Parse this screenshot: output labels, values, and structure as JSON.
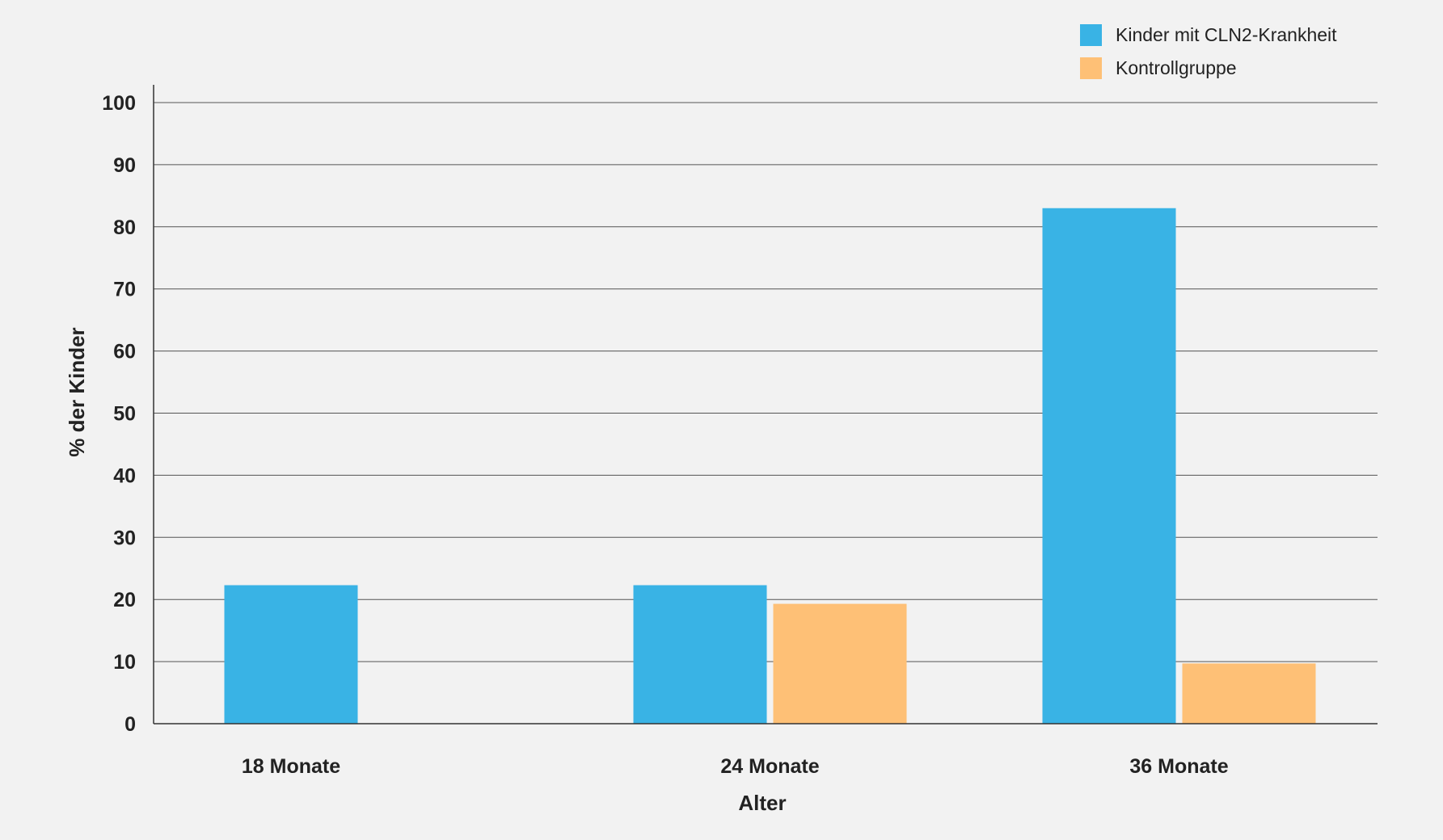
{
  "chart_data": {
    "type": "bar",
    "categories": [
      "18 Monate",
      "24 Monate",
      "36 Monate"
    ],
    "series": [
      {
        "name": "Kinder mit CLN2-Krankheit",
        "color": "#39b3e5",
        "values": [
          22.3,
          22.3,
          83
        ]
      },
      {
        "name": "Kontrollgruppe",
        "color": "#fec076",
        "values": [
          null,
          19.3,
          9.7
        ]
      }
    ],
    "xlabel": "Alter",
    "ylabel": "% der Kinder",
    "ylim": [
      0,
      100
    ],
    "yticks": [
      0,
      10,
      20,
      30,
      40,
      50,
      60,
      70,
      80,
      90,
      100
    ],
    "grid": true,
    "legend_position": "top-right"
  }
}
